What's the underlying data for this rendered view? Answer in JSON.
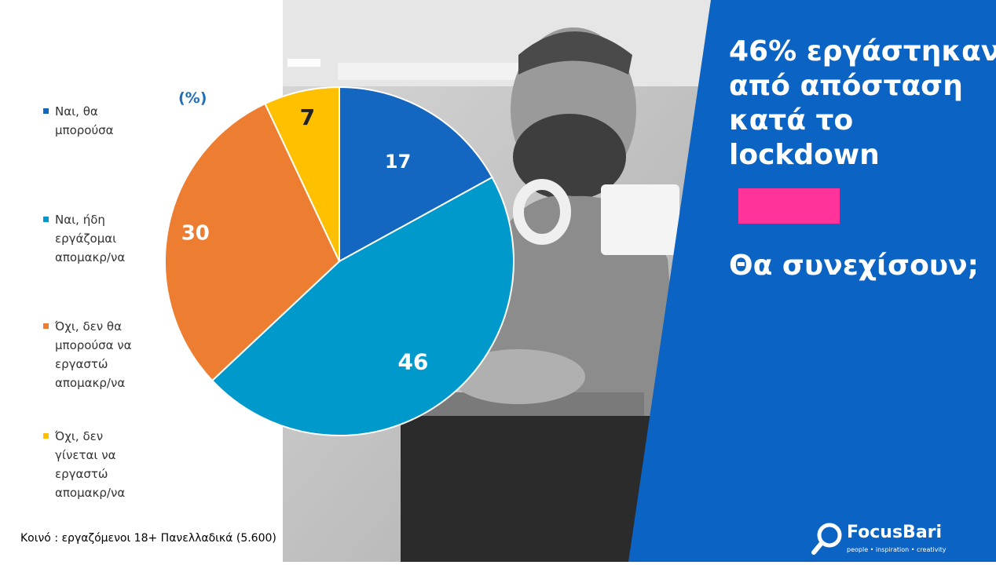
{
  "chart_data": {
    "type": "pie",
    "unit_label": "(%)",
    "slices": [
      {
        "label": "Ναι, θα μπορούσα",
        "value": 17,
        "color": "#1467c0"
      },
      {
        "label": "Ναι, ήδη εργάζομαι απομακρ/να",
        "value": 46,
        "color": "#0099cc"
      },
      {
        "label": "Όχι, δεν θα μπορούσα να εργαστώ απομακρ/να",
        "value": 30,
        "color": "#ed7d31"
      },
      {
        "label": "Όχι, δεν γίνεται να εργαστώ απομακρ/να",
        "value": 7,
        "color": "#ffc000"
      }
    ],
    "label_colors": [
      "#ffffff",
      "#ffffff",
      "#ffffff",
      "#222222"
    ]
  },
  "headline": {
    "line1": "46% εργάστηκαν",
    "line2": "από απόσταση",
    "line3": "κατά το",
    "line4": "lockdown",
    "question": "Θα συνεχίσουν;"
  },
  "legend": {
    "items": [
      {
        "lines": [
          "Ναι, θα",
          "μπορούσα"
        ]
      },
      {
        "lines": [
          "Ναι, ήδη",
          "εργάζομαι",
          "απομακρ/να"
        ]
      },
      {
        "lines": [
          "Όχι, δεν θα",
          "μπορούσα να",
          "εργαστώ",
          "απομακρ/να"
        ]
      },
      {
        "lines": [
          "Όχι, δεν",
          "γίνεται να",
          "εργαστώ",
          "απομακρ/να"
        ]
      }
    ]
  },
  "footnote": "Κοινό : εργαζόμενοι 18+ Πανελλαδικά  (5.600)",
  "logo": {
    "name": "FocusBari",
    "tagline": "people • inspiration • creativity"
  },
  "colors": {
    "panel_blue": "#0b63c4",
    "accent_pink": "#ff3399"
  }
}
